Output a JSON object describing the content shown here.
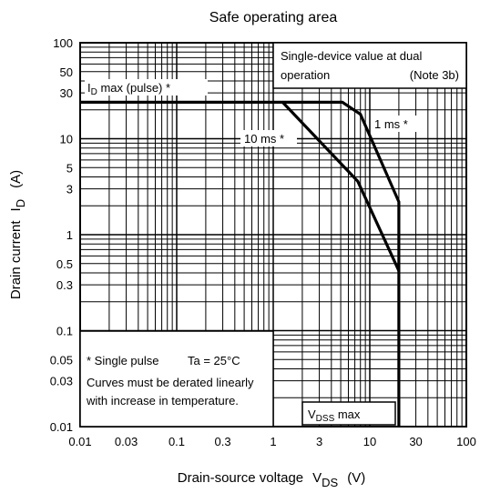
{
  "chart_data": {
    "type": "line",
    "title": "Safe operating area",
    "x_scale": "log",
    "y_scale": "log",
    "xlim": [
      0.01,
      100
    ],
    "ylim": [
      0.01,
      100
    ],
    "x_unit": "(V)",
    "y_unit": "(A)",
    "xlabel": {
      "text": "Drain-source voltage",
      "symbol": "V",
      "sub": "DS"
    },
    "ylabel": {
      "text": "Drain current",
      "symbol": "I",
      "sub": "D"
    },
    "x_ticks": [
      {
        "v": 0.01,
        "label": "0.01"
      },
      {
        "v": 0.03,
        "label": "0.03"
      },
      {
        "v": 0.1,
        "label": "0.1"
      },
      {
        "v": 0.3,
        "label": "0.3"
      },
      {
        "v": 1,
        "label": "1"
      },
      {
        "v": 3,
        "label": "3"
      },
      {
        "v": 10,
        "label": "10"
      },
      {
        "v": 30,
        "label": "30"
      },
      {
        "v": 100,
        "label": "100"
      }
    ],
    "y_ticks": [
      {
        "v": 0.01,
        "label": "0.01"
      },
      {
        "v": 0.03,
        "label": "0.03"
      },
      {
        "v": 0.05,
        "label": "0.05"
      },
      {
        "v": 0.1,
        "label": "0.1"
      },
      {
        "v": 0.3,
        "label": "0.3"
      },
      {
        "v": 0.5,
        "label": "0.5"
      },
      {
        "v": 1,
        "label": "1"
      },
      {
        "v": 3,
        "label": "3"
      },
      {
        "v": 5,
        "label": "5"
      },
      {
        "v": 10,
        "label": "10"
      },
      {
        "v": 30,
        "label": "30"
      },
      {
        "v": 50,
        "label": "50"
      },
      {
        "v": 100,
        "label": "100"
      }
    ],
    "series": [
      {
        "name": "1 ms *",
        "points": [
          [
            0.01,
            24
          ],
          [
            5.2,
            24
          ],
          [
            8,
            18
          ],
          [
            20,
            2.2
          ],
          [
            20,
            0.01
          ]
        ]
      },
      {
        "name": "10 ms *",
        "points": [
          [
            1.25,
            24
          ],
          [
            3,
            9.5
          ],
          [
            7.5,
            3.6
          ],
          [
            20,
            0.42
          ]
        ]
      }
    ],
    "annotations": {
      "id_max": {
        "prefix": "I",
        "sub": "D",
        "text": " max (pulse) *"
      },
      "vdss_max": {
        "prefix": "V",
        "sub": "DSS",
        "text": " max"
      },
      "note_box": {
        "line1": "Single-device value at dual",
        "line2a": "operation",
        "line2b": "(Note 3b)"
      },
      "info_box": {
        "line1a": "*  Single pulse",
        "line1b": "Ta = 25°C",
        "line2": "Curves must be derated linearly",
        "line3": "with increase in temperature."
      }
    }
  }
}
